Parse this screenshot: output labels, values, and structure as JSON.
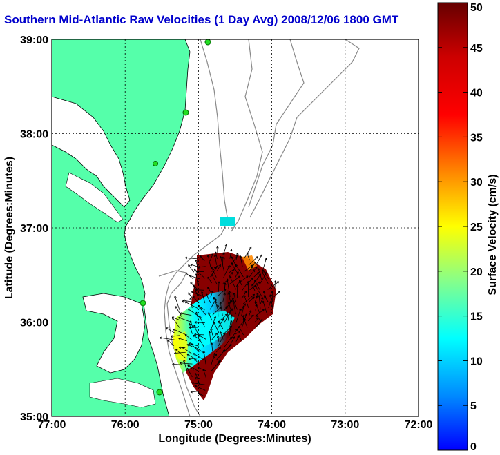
{
  "title": "Southern Mid-Atlantic Raw Velocities (1 Day Avg) 2008/12/06 1800 GMT",
  "xaxis": {
    "label": "Longitude (Degrees:Minutes)",
    "ticks": [
      {
        "value": -77,
        "label": "77:00"
      },
      {
        "value": -76,
        "label": "76:00"
      },
      {
        "value": -75,
        "label": "75:00"
      },
      {
        "value": -74,
        "label": "74:00"
      },
      {
        "value": -73,
        "label": "73:00"
      },
      {
        "value": -72,
        "label": "72:00"
      }
    ],
    "range": [
      -77,
      -72
    ]
  },
  "yaxis": {
    "label": "Latitude (Degrees:Minutes)",
    "ticks": [
      {
        "value": 39,
        "label": "39:00"
      },
      {
        "value": 38,
        "label": "38:00"
      },
      {
        "value": 37,
        "label": "37:00"
      },
      {
        "value": 36,
        "label": "36:00"
      },
      {
        "value": 35,
        "label": "35:00"
      }
    ],
    "range": [
      35,
      39
    ]
  },
  "colorbar": {
    "label": "Surface Velocity (cm/s)",
    "ticks": [
      "0",
      "5",
      "10",
      "15",
      "20",
      "25",
      "30",
      "35",
      "40",
      "45",
      "50"
    ],
    "range": [
      0,
      50
    ]
  },
  "colors": {
    "land": "#55ffaa",
    "title": "#0000cc",
    "stations": "#22dd22"
  }
}
